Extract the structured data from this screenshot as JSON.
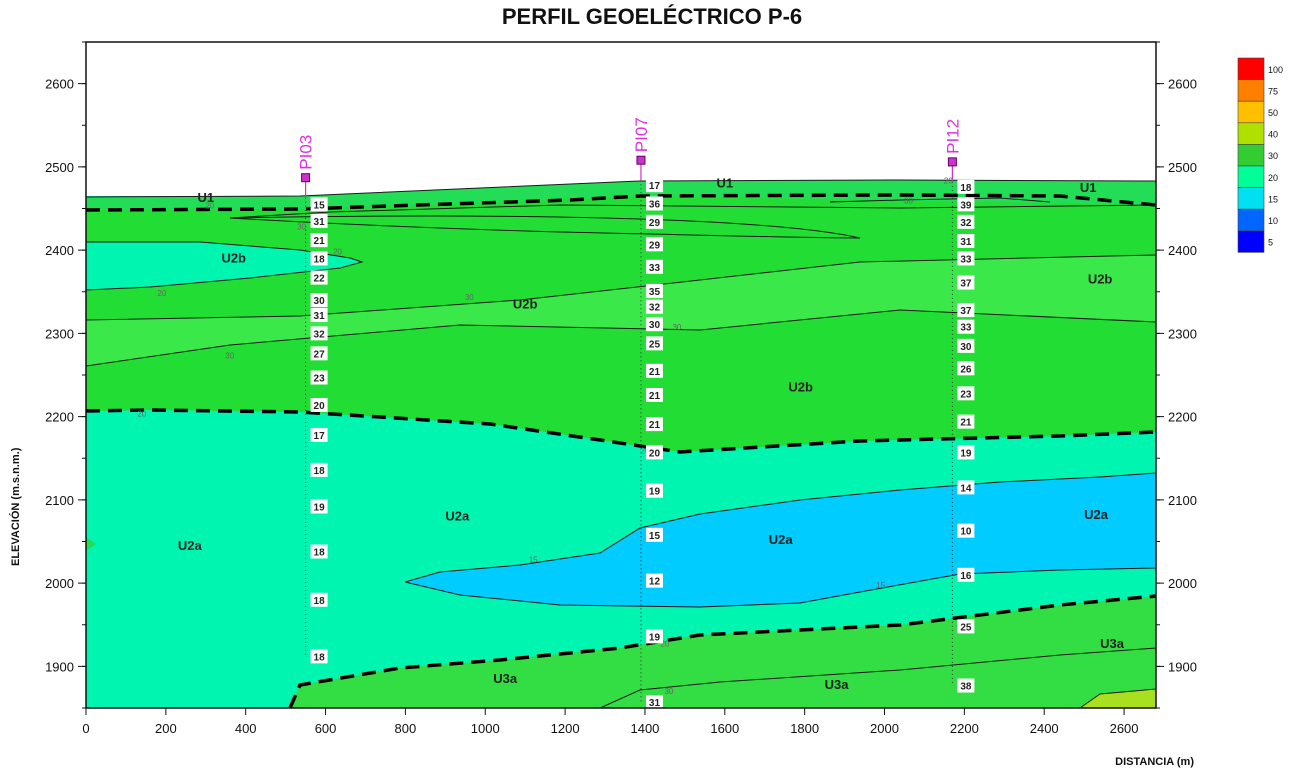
{
  "chart_data": {
    "type": "contour",
    "title": "PERFIL GEOELÉCTRICO P-6",
    "xlabel": "DISTANCIA (m)",
    "ylabel": "ELEVACIÓN (m.s.n.m.)",
    "xlim": [
      0,
      2680
    ],
    "ylim": [
      1850,
      2650
    ],
    "x_ticks": [
      "0",
      "200",
      "400",
      "600",
      "800",
      "1000",
      "1200",
      "1400",
      "1600",
      "1800",
      "2000",
      "2200",
      "2400",
      "2600"
    ],
    "y_ticks": [
      "1900",
      "2000",
      "2100",
      "2200",
      "2300",
      "2400",
      "2500",
      "2600"
    ],
    "colorbar": {
      "labels": [
        "100",
        "75",
        "50",
        "40",
        "30",
        "20",
        "15",
        "10",
        "5"
      ],
      "colors": [
        "#ff0000",
        "#ff8000",
        "#ffc000",
        "#b0e000",
        "#33cc33",
        "#00ff99",
        "#00e0f0",
        "#0066ff",
        "#0000ff"
      ]
    },
    "zone_colors": {
      "U1": "#22dd55",
      "U2b": "#22dd33",
      "U2a": "#00f5b0",
      "U2a_low": "#00ccff",
      "U3a": "#33dd44",
      "U3a_high": "#a8e020"
    },
    "soundings": [
      {
        "name": "PI03",
        "x": 550,
        "top": 2487,
        "readings": [
          {
            "elev": 2455,
            "v": "15"
          },
          {
            "elev": 2435,
            "v": "31"
          },
          {
            "elev": 2412,
            "v": "21"
          },
          {
            "elev": 2390,
            "v": "18"
          },
          {
            "elev": 2367,
            "v": "22"
          },
          {
            "elev": 2340,
            "v": "30"
          },
          {
            "elev": 2322,
            "v": "31"
          },
          {
            "elev": 2300,
            "v": "32"
          },
          {
            "elev": 2276,
            "v": "27"
          },
          {
            "elev": 2247,
            "v": "23"
          },
          {
            "elev": 2214,
            "v": "20"
          },
          {
            "elev": 2178,
            "v": "17"
          },
          {
            "elev": 2136,
            "v": "18"
          },
          {
            "elev": 2092,
            "v": "19"
          },
          {
            "elev": 2038,
            "v": "18"
          },
          {
            "elev": 1980,
            "v": "18"
          },
          {
            "elev": 1912,
            "v": "18"
          }
        ]
      },
      {
        "name": "PI07",
        "x": 1390,
        "top": 2508,
        "readings": [
          {
            "elev": 2478,
            "v": "17"
          },
          {
            "elev": 2456,
            "v": "36"
          },
          {
            "elev": 2434,
            "v": "29"
          },
          {
            "elev": 2407,
            "v": "29"
          },
          {
            "elev": 2380,
            "v": "33"
          },
          {
            "elev": 2351,
            "v": "35"
          },
          {
            "elev": 2332,
            "v": "32"
          },
          {
            "elev": 2311,
            "v": "30"
          },
          {
            "elev": 2288,
            "v": "25"
          },
          {
            "elev": 2255,
            "v": "21"
          },
          {
            "elev": 2226,
            "v": "21"
          },
          {
            "elev": 2191,
            "v": "21"
          },
          {
            "elev": 2157,
            "v": "20"
          },
          {
            "elev": 2111,
            "v": "19"
          },
          {
            "elev": 2058,
            "v": "15"
          },
          {
            "elev": 2003,
            "v": "12"
          },
          {
            "elev": 1936,
            "v": "19"
          },
          {
            "elev": 1857,
            "v": "31"
          }
        ]
      },
      {
        "name": "PI12",
        "x": 2170,
        "top": 2506,
        "readings": [
          {
            "elev": 2476,
            "v": "18"
          },
          {
            "elev": 2455,
            "v": "39"
          },
          {
            "elev": 2434,
            "v": "32"
          },
          {
            "elev": 2411,
            "v": "31"
          },
          {
            "elev": 2390,
            "v": "33"
          },
          {
            "elev": 2361,
            "v": "37"
          },
          {
            "elev": 2328,
            "v": "37"
          },
          {
            "elev": 2308,
            "v": "33"
          },
          {
            "elev": 2285,
            "v": "30"
          },
          {
            "elev": 2258,
            "v": "26"
          },
          {
            "elev": 2228,
            "v": "23"
          },
          {
            "elev": 2194,
            "v": "21"
          },
          {
            "elev": 2157,
            "v": "19"
          },
          {
            "elev": 2115,
            "v": "14"
          },
          {
            "elev": 2063,
            "v": "10"
          },
          {
            "elev": 2010,
            "v": "16"
          },
          {
            "elev": 1948,
            "v": "25"
          },
          {
            "elev": 1877,
            "v": "38"
          }
        ]
      }
    ],
    "zone_labels": [
      {
        "text": "U1",
        "x": 300,
        "elev": 2458
      },
      {
        "text": "U1",
        "x": 1600,
        "elev": 2475
      },
      {
        "text": "U1",
        "x": 2510,
        "elev": 2470
      },
      {
        "text": "U2b",
        "x": 370,
        "elev": 2385
      },
      {
        "text": "U2b",
        "x": 1100,
        "elev": 2330
      },
      {
        "text": "U2b",
        "x": 1790,
        "elev": 2230
      },
      {
        "text": "U2b",
        "x": 2540,
        "elev": 2360
      },
      {
        "text": "U2a",
        "x": 260,
        "elev": 2040
      },
      {
        "text": "U2a",
        "x": 930,
        "elev": 2075
      },
      {
        "text": "U2a",
        "x": 1740,
        "elev": 2047
      },
      {
        "text": "U2a",
        "x": 2530,
        "elev": 2077
      },
      {
        "text": "U3a",
        "x": 1050,
        "elev": 1880
      },
      {
        "text": "U3a",
        "x": 1880,
        "elev": 1873
      },
      {
        "text": "U3a",
        "x": 2570,
        "elev": 1922
      }
    ],
    "contour_labels": [
      {
        "v": "20",
        "x": 310,
        "elev": 2450
      },
      {
        "v": "30",
        "x": 540,
        "elev": 2425
      },
      {
        "v": "20",
        "x": 630,
        "elev": 2395
      },
      {
        "v": "20",
        "x": 190,
        "elev": 2345
      },
      {
        "v": "30",
        "x": 960,
        "elev": 2340
      },
      {
        "v": "30",
        "x": 360,
        "elev": 2270
      },
      {
        "v": "30",
        "x": 1480,
        "elev": 2304
      },
      {
        "v": "20",
        "x": 140,
        "elev": 2200
      },
      {
        "v": "20",
        "x": 1400,
        "elev": 2156
      },
      {
        "v": "15",
        "x": 1120,
        "elev": 2025
      },
      {
        "v": "15",
        "x": 1990,
        "elev": 1994
      },
      {
        "v": "30",
        "x": 2060,
        "elev": 2456
      },
      {
        "v": "20",
        "x": 2160,
        "elev": 2480
      },
      {
        "v": "20",
        "x": 1450,
        "elev": 1924
      },
      {
        "v": "30",
        "x": 1460,
        "elev": 1867
      }
    ]
  }
}
